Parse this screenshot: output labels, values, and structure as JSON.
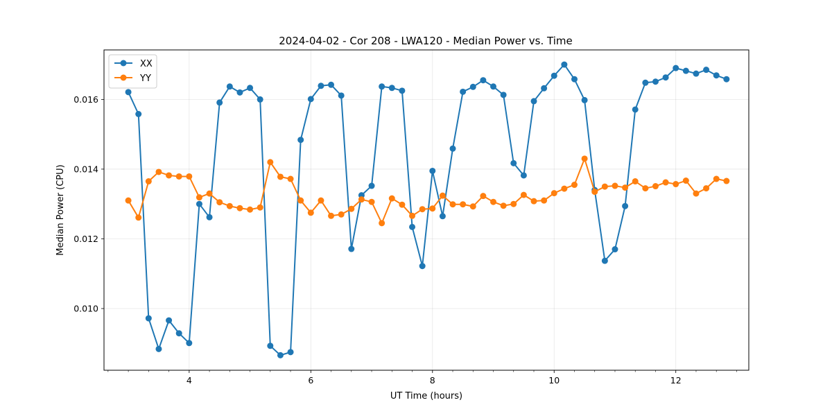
{
  "chart_data": {
    "type": "line",
    "title": "2024-04-02 - Cor 208 - LWA120 - Median Power vs. Time",
    "xlabel": "UT Time (hours)",
    "ylabel": "Median Power (CPU)",
    "xlim": [
      2.6,
      13.2
    ],
    "ylim": [
      0.00823,
      0.01742
    ],
    "xticks": [
      4,
      6,
      8,
      10,
      12
    ],
    "xtick_labels": [
      "4",
      "6",
      "8",
      "10",
      "12"
    ],
    "x_minor_step": 0.333333,
    "yticks": [
      0.01,
      0.012,
      0.014,
      0.016
    ],
    "ytick_labels": [
      "0.010",
      "0.012",
      "0.014",
      "0.016"
    ],
    "grid": true,
    "legend_position": "top-left",
    "x": [
      3.0,
      3.1667,
      3.3333,
      3.5,
      3.6667,
      3.8333,
      4.0,
      4.1667,
      4.3333,
      4.5,
      4.6667,
      4.8333,
      5.0,
      5.1667,
      5.3333,
      5.5,
      5.6667,
      5.8333,
      6.0,
      6.1667,
      6.3333,
      6.5,
      6.6667,
      6.8333,
      7.0,
      7.1667,
      7.3333,
      7.5,
      7.6667,
      7.8333,
      8.0,
      8.1667,
      8.3333,
      8.5,
      8.6667,
      8.8333,
      9.0,
      9.1667,
      9.3333,
      9.5,
      9.6667,
      9.8333,
      10.0,
      10.1667,
      10.3333,
      10.5,
      10.6667,
      10.8333,
      11.0,
      11.1667,
      11.3333,
      11.5,
      11.6667,
      11.8333,
      12.0,
      12.1667,
      12.3333,
      12.5,
      12.6667,
      12.8333
    ],
    "series": [
      {
        "name": "XX",
        "color": "#1f77b4",
        "values": [
          0.01621,
          0.01558,
          0.00972,
          0.00884,
          0.00966,
          0.00929,
          0.00901,
          0.013,
          0.01262,
          0.01591,
          0.01637,
          0.0162,
          0.01633,
          0.016,
          0.00893,
          0.00866,
          0.00875,
          0.01484,
          0.01601,
          0.01639,
          0.01642,
          0.01611,
          0.01171,
          0.01325,
          0.01352,
          0.01637,
          0.01633,
          0.01625,
          0.01234,
          0.01122,
          0.01395,
          0.01265,
          0.01459,
          0.01622,
          0.01636,
          0.01655,
          0.01637,
          0.01613,
          0.01417,
          0.01382,
          0.01595,
          0.01632,
          0.01668,
          0.017,
          0.01658,
          0.01598,
          0.0134,
          0.01137,
          0.0117,
          0.01294,
          0.01571,
          0.01648,
          0.01651,
          0.01663,
          0.0169,
          0.01682,
          0.01674,
          0.01685,
          0.01669,
          0.01658
        ]
      },
      {
        "name": "YY",
        "color": "#ff7f0e",
        "values": [
          0.0131,
          0.01261,
          0.01365,
          0.01392,
          0.01382,
          0.01379,
          0.01379,
          0.01319,
          0.0133,
          0.01305,
          0.01294,
          0.01288,
          0.01284,
          0.0129,
          0.0142,
          0.01378,
          0.01372,
          0.0131,
          0.01275,
          0.0131,
          0.01266,
          0.0127,
          0.01286,
          0.01313,
          0.01306,
          0.01245,
          0.01316,
          0.01298,
          0.01266,
          0.01285,
          0.01287,
          0.01324,
          0.01299,
          0.01299,
          0.01293,
          0.01323,
          0.01306,
          0.01295,
          0.013,
          0.01326,
          0.01308,
          0.0131,
          0.01331,
          0.01344,
          0.01355,
          0.0143,
          0.01335,
          0.0135,
          0.01352,
          0.01347,
          0.01365,
          0.01345,
          0.01351,
          0.01362,
          0.01357,
          0.01367,
          0.0133,
          0.01345,
          0.01372,
          0.01366
        ]
      }
    ]
  }
}
